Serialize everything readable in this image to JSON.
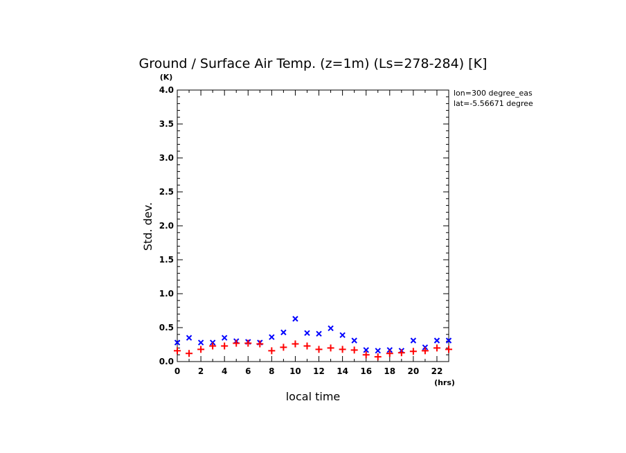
{
  "chart_data": {
    "type": "scatter",
    "title": "Ground / Surface Air Temp. (z=1m) (Ls=278-284) [K]",
    "xlabel": "local time",
    "ylabel": "Std. dev.",
    "x_unit": "(hrs)",
    "y_unit": "(K)",
    "xlim": [
      0,
      23
    ],
    "ylim": [
      0,
      4.0
    ],
    "x_ticks": [
      "0",
      "2",
      "4",
      "6",
      "8",
      "10",
      "12",
      "14",
      "16",
      "18",
      "20",
      "22"
    ],
    "y_ticks": [
      "0.0",
      "0.5",
      "1.0",
      "1.5",
      "2.0",
      "2.5",
      "3.0",
      "3.5",
      "4.0"
    ],
    "annotations": [
      "lon=300 degree_eas",
      "lat=-5.56671 degree"
    ],
    "grid": false,
    "series": [
      {
        "marker": "x",
        "color": "#0000ff",
        "x": [
          0,
          1,
          2,
          3,
          4,
          5,
          6,
          7,
          8,
          9,
          10,
          11,
          12,
          13,
          14,
          15,
          16,
          17,
          18,
          19,
          20,
          21,
          22,
          23
        ],
        "y": [
          0.28,
          0.35,
          0.28,
          0.28,
          0.35,
          0.3,
          0.29,
          0.28,
          0.36,
          0.43,
          0.63,
          0.42,
          0.41,
          0.49,
          0.39,
          0.31,
          0.17,
          0.16,
          0.17,
          0.16,
          0.31,
          0.21,
          0.31,
          0.31
        ]
      },
      {
        "marker": "+",
        "color": "#ff0000",
        "x": [
          0,
          1,
          2,
          3,
          4,
          5,
          6,
          7,
          8,
          9,
          10,
          11,
          12,
          13,
          14,
          15,
          16,
          17,
          18,
          19,
          20,
          21,
          22,
          23
        ],
        "y": [
          0.16,
          0.12,
          0.18,
          0.23,
          0.23,
          0.27,
          0.27,
          0.26,
          0.16,
          0.21,
          0.26,
          0.23,
          0.18,
          0.2,
          0.18,
          0.17,
          0.1,
          0.07,
          0.12,
          0.13,
          0.15,
          0.16,
          0.2,
          0.18
        ]
      }
    ]
  }
}
